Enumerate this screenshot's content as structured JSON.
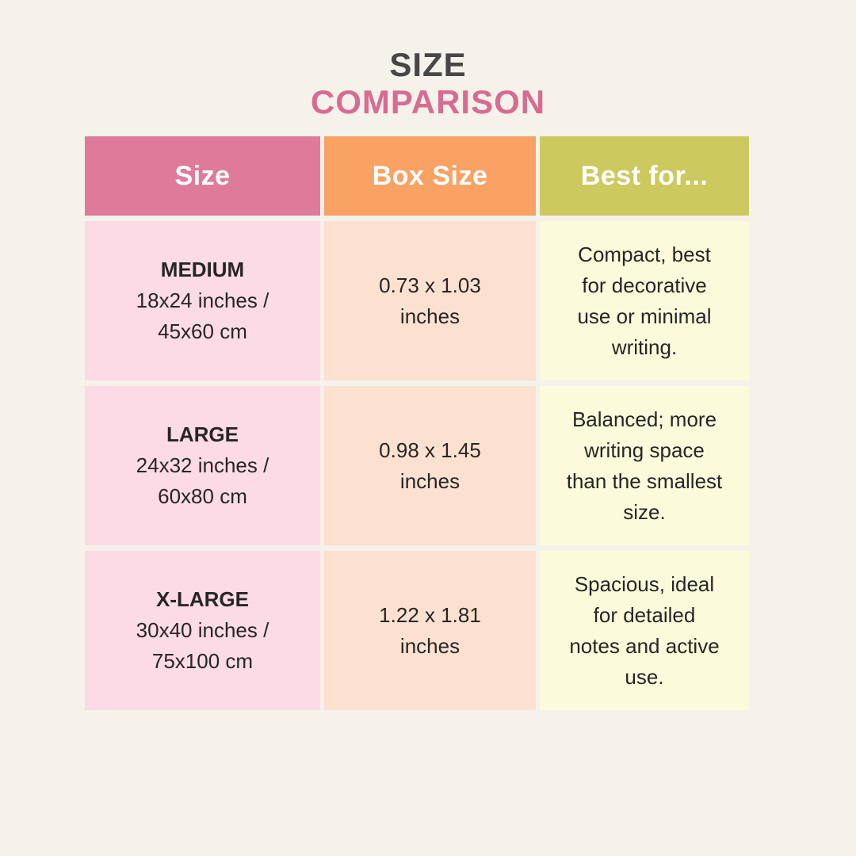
{
  "title": {
    "line1": "SIZE",
    "line2": "COMPARISON"
  },
  "colors": {
    "page_background": "#f5f1eb",
    "title_line1_text": "#474747",
    "title_line2_text": "#d76b92",
    "header_size_bg": "#df7b9a",
    "header_box_bg": "#f9a263",
    "header_best_bg": "#ccc95f",
    "header_text": "#ffffff",
    "cell_size_bg": "#fcdbe6",
    "cell_box_bg": "#fce1d0",
    "cell_best_bg": "#fbfbdc",
    "body_text": "#262626"
  },
  "table": {
    "headers": [
      {
        "label": "Size"
      },
      {
        "label": "Box Size"
      },
      {
        "label": "Best for..."
      }
    ],
    "rows": [
      {
        "size_name": "MEDIUM",
        "dimensions": "18x24 inches /\n45x60 cm",
        "box_size": "0.73 x 1.03\ninches",
        "best_for": "Compact, best\nfor decorative\nuse or minimal\nwriting."
      },
      {
        "size_name": "LARGE",
        "dimensions": "24x32 inches /\n60x80 cm",
        "box_size": "0.98 x 1.45\ninches",
        "best_for": "Balanced; more\nwriting space\nthan the smallest\nsize."
      },
      {
        "size_name": "X-LARGE",
        "dimensions": "30x40 inches /\n75x100 cm",
        "box_size": "1.22 x 1.81\ninches",
        "best_for": "Spacious, ideal\nfor detailed\nnotes and active\nuse."
      }
    ]
  },
  "chart_data": {
    "type": "table",
    "title": "SIZE COMPARISON",
    "columns": [
      "Size",
      "Box Size",
      "Best for..."
    ],
    "rows": [
      [
        "MEDIUM 18x24 inches / 45x60 cm",
        "0.73 x 1.03 inches",
        "Compact, best for decorative use or minimal writing."
      ],
      [
        "LARGE 24x32 inches / 60x80 cm",
        "0.98 x 1.45 inches",
        "Balanced; more writing space than the smallest size."
      ],
      [
        "X-LARGE 30x40 inches / 75x100 cm",
        "1.22 x 1.81 inches",
        "Spacious, ideal for detailed notes and active use."
      ]
    ]
  }
}
